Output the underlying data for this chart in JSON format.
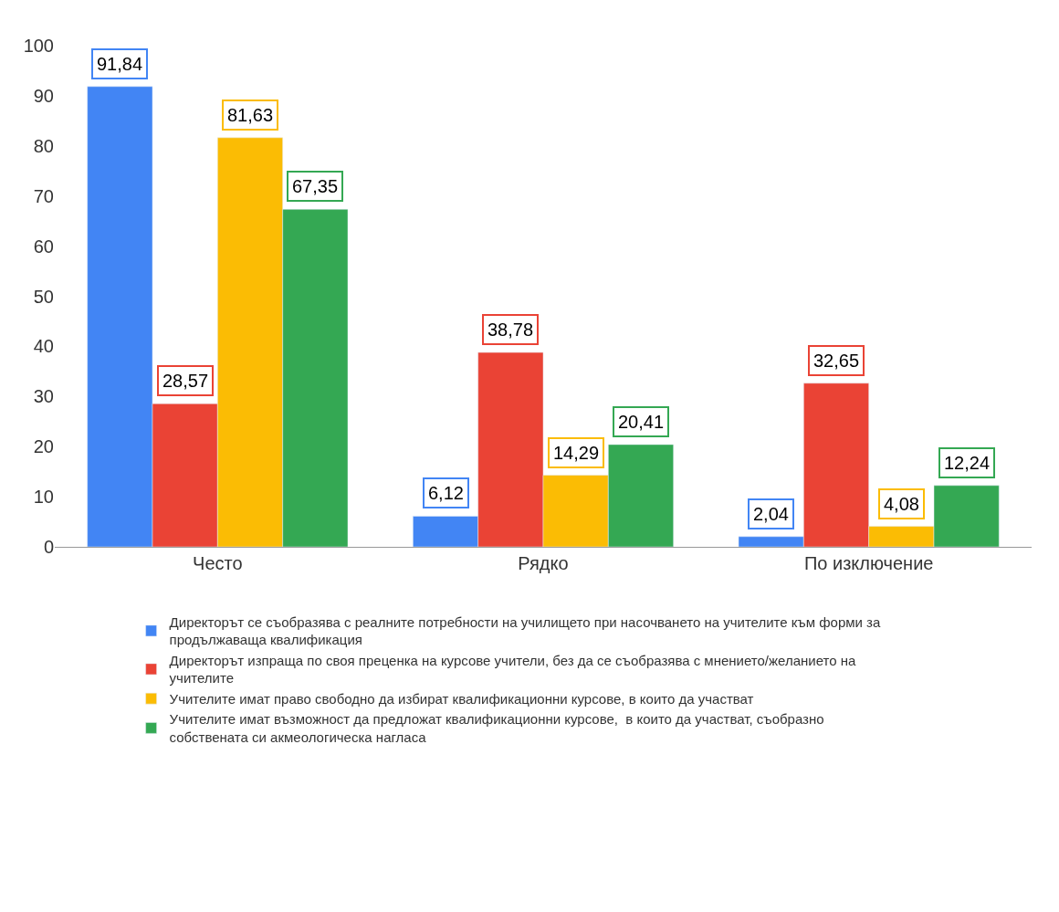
{
  "chart_data": {
    "type": "bar",
    "categories": [
      "Често",
      "Рядко",
      "По изключение"
    ],
    "series": [
      {
        "name": "Директорът се съобразява с реалните потребности на училището при насочването на учителите към форми за продължаваща квалификация",
        "color": "#4285f4",
        "values": [
          91.84,
          6.12,
          2.04
        ],
        "value_labels": [
          "91,84",
          "6,12",
          "2,04"
        ]
      },
      {
        "name": "Директорът изпраща по своя преценка на курсове учители, без да се съобразява с мнението/желанието на учителите",
        "color": "#ea4335",
        "values": [
          28.57,
          38.78,
          32.65
        ],
        "value_labels": [
          "28,57",
          "38,78",
          "32,65"
        ]
      },
      {
        "name": "Учителите имат право свободно да избират квалификационни курсове, в които да участват",
        "color": "#fbbc04",
        "values": [
          81.63,
          14.29,
          4.08
        ],
        "value_labels": [
          "81,63",
          "14,29",
          "4,08"
        ]
      },
      {
        "name": "Учителите имат възможност да предложат квалификационни курсове,  в които да участват, съобразно собствената си акмеологическа нагласа",
        "color": "#34a853",
        "values": [
          67.35,
          20.41,
          12.24
        ],
        "value_labels": [
          "67,35",
          "20,41",
          "12,24"
        ]
      }
    ],
    "ylim": [
      0,
      100
    ],
    "yticks": [
      0,
      10,
      20,
      30,
      40,
      50,
      60,
      70,
      80,
      90,
      100
    ],
    "grid": false,
    "legend": "bottom"
  }
}
